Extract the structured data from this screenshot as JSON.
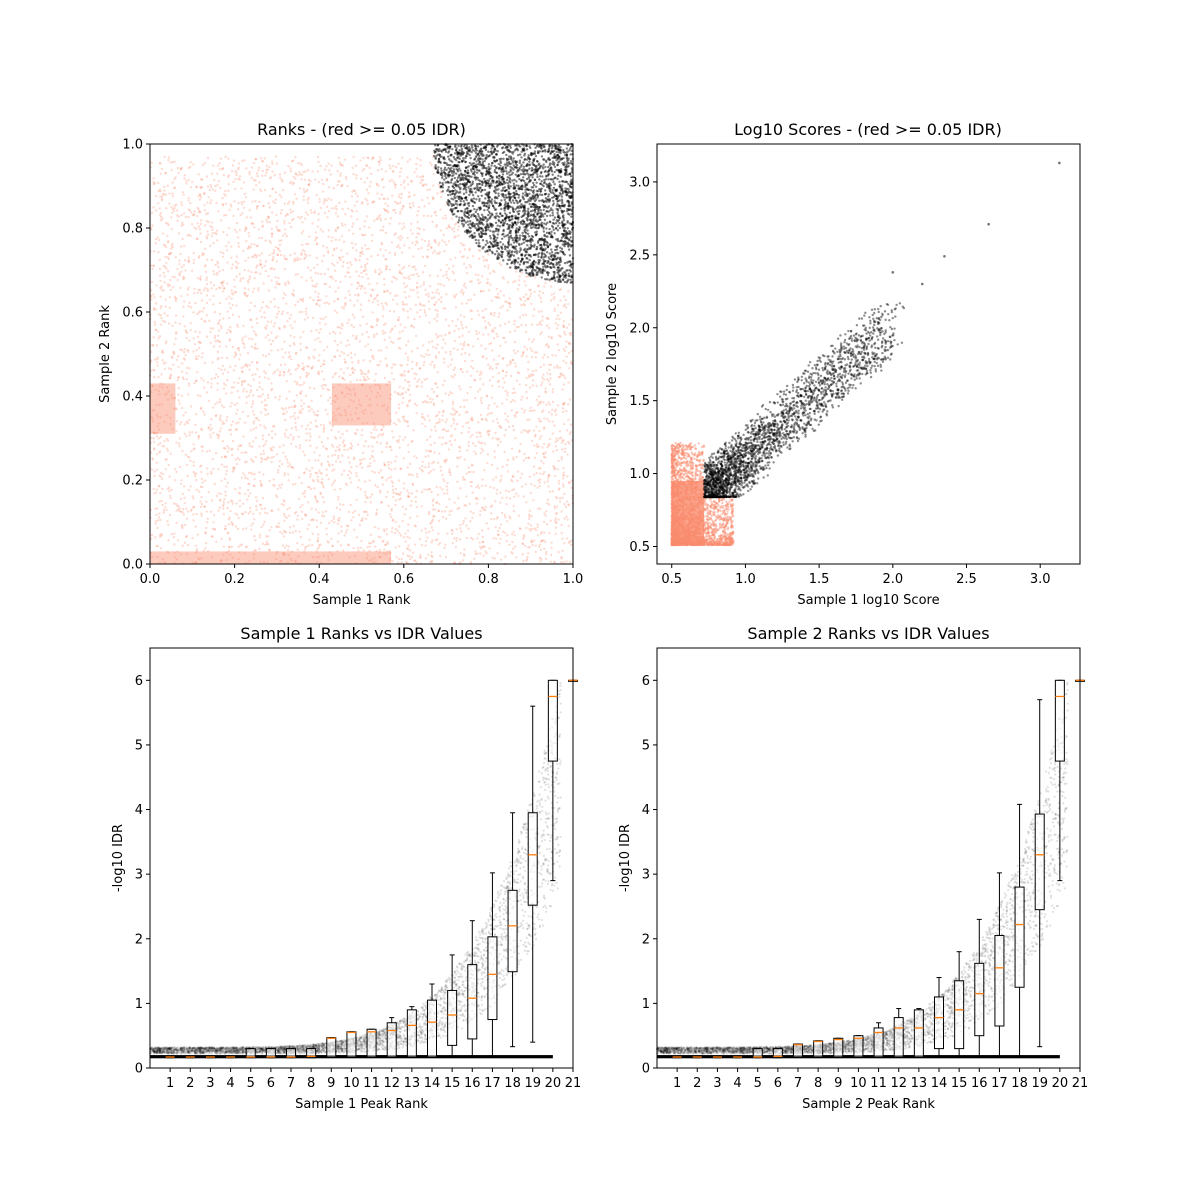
{
  "chart_data": [
    {
      "id": "ranks",
      "type": "scatter",
      "title": "Ranks - (red >= 0.05 IDR)",
      "xlabel": "Sample 1 Rank",
      "ylabel": "Sample 2 Rank",
      "xlim": [
        0,
        1
      ],
      "ylim": [
        0,
        1
      ],
      "xticks": [
        "0.0",
        "0.2",
        "0.4",
        "0.6",
        "0.8",
        "1.0"
      ],
      "yticks": [
        "0.0",
        "0.2",
        "0.4",
        "0.6",
        "0.8",
        "1.0"
      ],
      "colors": {
        "pass": "#000000",
        "fail": "#fa8c6e"
      },
      "series": [
        {
          "name": "IDR >= 0.05",
          "color": "#fa8c6e",
          "x_range": [
            0,
            1
          ],
          "y_range": [
            0,
            1
          ]
        },
        {
          "name": "IDR < 0.05",
          "color": "#000000",
          "region": "upper-right corner, sqrt((1-x)^2+(1-y)^2) < 0.33"
        }
      ]
    },
    {
      "id": "scores",
      "type": "scatter",
      "title": "Log10 Scores - (red >= 0.05 IDR)",
      "xlabel": "Sample 1 log10 Score",
      "ylabel": "Sample 2 log10 Score",
      "xlim": [
        0.4,
        3.27
      ],
      "ylim": [
        0.38,
        3.26
      ],
      "xticks": [
        "0.5",
        "1.0",
        "1.5",
        "2.0",
        "2.5",
        "3.0"
      ],
      "yticks": [
        "0.5",
        "1.0",
        "1.5",
        "2.0",
        "2.5",
        "3.0"
      ],
      "colors": {
        "pass": "#000000",
        "fail": "#fa8c6e"
      },
      "series": [
        {
          "name": "IDR >= 0.05",
          "color": "#fa8c6e",
          "x_range": [
            0.5,
            0.9
          ],
          "y_range": [
            0.5,
            1.2
          ]
        },
        {
          "name": "IDR < 0.05",
          "color": "#000000",
          "x_range": [
            0.72,
            3.13
          ],
          "y_range": [
            0.84,
            3.13
          ]
        }
      ]
    },
    {
      "id": "s1box",
      "type": "box",
      "title": "Sample 1 Ranks vs IDR Values",
      "xlabel": "Sample 1 Peak Rank",
      "ylabel": "-log10 IDR",
      "xlim": [
        0,
        21
      ],
      "ylim": [
        0,
        6.5
      ],
      "categories": [
        "1",
        "2",
        "3",
        "4",
        "5",
        "6",
        "7",
        "8",
        "9",
        "10",
        "11",
        "12",
        "13",
        "14",
        "15",
        "16",
        "17",
        "18",
        "19",
        "20",
        "21"
      ],
      "yticks": [
        "0",
        "1",
        "2",
        "3",
        "4",
        "5",
        "6"
      ],
      "colors": {
        "points": "#000000",
        "median": "#ff7f0e",
        "box": "#000000"
      },
      "boxes": [
        {
          "x": 1,
          "q1": 0.16,
          "median": 0.17,
          "q3": 0.18,
          "wlo": 0.16,
          "whi": 0.18
        },
        {
          "x": 2,
          "q1": 0.16,
          "median": 0.17,
          "q3": 0.18,
          "wlo": 0.16,
          "whi": 0.18
        },
        {
          "x": 3,
          "q1": 0.16,
          "median": 0.17,
          "q3": 0.18,
          "wlo": 0.16,
          "whi": 0.18
        },
        {
          "x": 4,
          "q1": 0.16,
          "median": 0.17,
          "q3": 0.18,
          "wlo": 0.16,
          "whi": 0.18
        },
        {
          "x": 5,
          "q1": 0.16,
          "median": 0.17,
          "q3": 0.3,
          "wlo": 0.16,
          "whi": 0.3
        },
        {
          "x": 6,
          "q1": 0.16,
          "median": 0.17,
          "q3": 0.3,
          "wlo": 0.16,
          "whi": 0.3
        },
        {
          "x": 7,
          "q1": 0.16,
          "median": 0.17,
          "q3": 0.3,
          "wlo": 0.16,
          "whi": 0.3
        },
        {
          "x": 8,
          "q1": 0.16,
          "median": 0.18,
          "q3": 0.3,
          "wlo": 0.16,
          "whi": 0.3
        },
        {
          "x": 9,
          "q1": 0.17,
          "median": 0.46,
          "q3": 0.47,
          "wlo": 0.17,
          "whi": 0.47
        },
        {
          "x": 10,
          "q1": 0.17,
          "median": 0.55,
          "q3": 0.56,
          "wlo": 0.17,
          "whi": 0.56
        },
        {
          "x": 11,
          "q1": 0.17,
          "median": 0.56,
          "q3": 0.6,
          "wlo": 0.17,
          "whi": 0.6
        },
        {
          "x": 12,
          "q1": 0.17,
          "median": 0.58,
          "q3": 0.7,
          "wlo": 0.17,
          "whi": 0.78
        },
        {
          "x": 13,
          "q1": 0.17,
          "median": 0.66,
          "q3": 0.9,
          "wlo": 0.17,
          "whi": 0.95
        },
        {
          "x": 14,
          "q1": 0.17,
          "median": 0.71,
          "q3": 1.05,
          "wlo": 0.17,
          "whi": 1.3
        },
        {
          "x": 15,
          "q1": 0.35,
          "median": 0.82,
          "q3": 1.2,
          "wlo": 0.17,
          "whi": 1.75
        },
        {
          "x": 16,
          "q1": 0.45,
          "median": 1.08,
          "q3": 1.6,
          "wlo": 0.17,
          "whi": 2.28
        },
        {
          "x": 17,
          "q1": 0.75,
          "median": 1.45,
          "q3": 2.03,
          "wlo": 0.17,
          "whi": 3.02
        },
        {
          "x": 18,
          "q1": 1.49,
          "median": 2.2,
          "q3": 2.75,
          "wlo": 0.33,
          "whi": 3.95
        },
        {
          "x": 19,
          "q1": 2.52,
          "median": 3.3,
          "q3": 3.95,
          "wlo": 0.4,
          "whi": 5.6
        },
        {
          "x": 20,
          "q1": 4.75,
          "median": 5.75,
          "q3": 6.0,
          "wlo": 2.9,
          "whi": 6.0
        },
        {
          "x": 21,
          "q1": 6.0,
          "median": 6.0,
          "q3": 6.0,
          "wlo": 6.0,
          "whi": 6.0
        }
      ]
    },
    {
      "id": "s2box",
      "type": "box",
      "title": "Sample 2 Ranks vs IDR Values",
      "xlabel": "Sample 2 Peak Rank",
      "ylabel": "-log10 IDR",
      "xlim": [
        0,
        21
      ],
      "ylim": [
        0,
        6.5
      ],
      "categories": [
        "1",
        "2",
        "3",
        "4",
        "5",
        "6",
        "7",
        "8",
        "9",
        "10",
        "11",
        "12",
        "13",
        "14",
        "15",
        "16",
        "17",
        "18",
        "19",
        "20",
        "21"
      ],
      "yticks": [
        "0",
        "1",
        "2",
        "3",
        "4",
        "5",
        "6"
      ],
      "colors": {
        "points": "#000000",
        "median": "#ff7f0e",
        "box": "#000000"
      },
      "boxes": [
        {
          "x": 1,
          "q1": 0.16,
          "median": 0.17,
          "q3": 0.18,
          "wlo": 0.16,
          "whi": 0.18
        },
        {
          "x": 2,
          "q1": 0.16,
          "median": 0.17,
          "q3": 0.18,
          "wlo": 0.16,
          "whi": 0.18
        },
        {
          "x": 3,
          "q1": 0.16,
          "median": 0.17,
          "q3": 0.18,
          "wlo": 0.16,
          "whi": 0.18
        },
        {
          "x": 4,
          "q1": 0.16,
          "median": 0.17,
          "q3": 0.18,
          "wlo": 0.16,
          "whi": 0.18
        },
        {
          "x": 5,
          "q1": 0.16,
          "median": 0.17,
          "q3": 0.3,
          "wlo": 0.16,
          "whi": 0.3
        },
        {
          "x": 6,
          "q1": 0.16,
          "median": 0.18,
          "q3": 0.3,
          "wlo": 0.16,
          "whi": 0.3
        },
        {
          "x": 7,
          "q1": 0.17,
          "median": 0.36,
          "q3": 0.37,
          "wlo": 0.17,
          "whi": 0.37
        },
        {
          "x": 8,
          "q1": 0.17,
          "median": 0.41,
          "q3": 0.42,
          "wlo": 0.17,
          "whi": 0.42
        },
        {
          "x": 9,
          "q1": 0.17,
          "median": 0.44,
          "q3": 0.46,
          "wlo": 0.17,
          "whi": 0.46
        },
        {
          "x": 10,
          "q1": 0.17,
          "median": 0.46,
          "q3": 0.5,
          "wlo": 0.17,
          "whi": 0.5
        },
        {
          "x": 11,
          "q1": 0.17,
          "median": 0.55,
          "q3": 0.62,
          "wlo": 0.17,
          "whi": 0.7
        },
        {
          "x": 12,
          "q1": 0.17,
          "median": 0.62,
          "q3": 0.78,
          "wlo": 0.17,
          "whi": 0.92
        },
        {
          "x": 13,
          "q1": 0.17,
          "median": 0.62,
          "q3": 0.9,
          "wlo": 0.17,
          "whi": 0.92
        },
        {
          "x": 14,
          "q1": 0.3,
          "median": 0.78,
          "q3": 1.1,
          "wlo": 0.17,
          "whi": 1.4
        },
        {
          "x": 15,
          "q1": 0.3,
          "median": 0.9,
          "q3": 1.35,
          "wlo": 0.17,
          "whi": 1.8
        },
        {
          "x": 16,
          "q1": 0.5,
          "median": 1.15,
          "q3": 1.62,
          "wlo": 0.17,
          "whi": 2.3
        },
        {
          "x": 17,
          "q1": 0.65,
          "median": 1.55,
          "q3": 2.05,
          "wlo": 0.17,
          "whi": 3.02
        },
        {
          "x": 18,
          "q1": 1.25,
          "median": 2.22,
          "q3": 2.8,
          "wlo": 0.17,
          "whi": 4.08
        },
        {
          "x": 19,
          "q1": 2.45,
          "median": 3.3,
          "q3": 3.93,
          "wlo": 0.33,
          "whi": 5.7
        },
        {
          "x": 20,
          "q1": 4.75,
          "median": 5.75,
          "q3": 6.0,
          "wlo": 2.9,
          "whi": 6.0
        },
        {
          "x": 21,
          "q1": 6.0,
          "median": 6.0,
          "q3": 6.0,
          "wlo": 6.0,
          "whi": 6.0
        }
      ]
    }
  ]
}
